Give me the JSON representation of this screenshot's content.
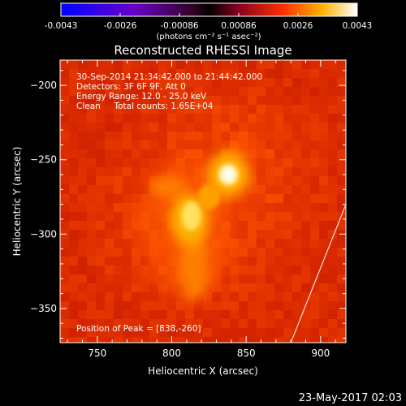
{
  "colorbar": {
    "ticks": [
      "-0.0043",
      "-0.0026",
      "-0.00086",
      "0.00086",
      "0.0026",
      "0.0043"
    ],
    "unit_label": "(photons cm⁻² s⁻¹ asec⁻²)"
  },
  "chart_data": {
    "type": "heatmap",
    "title": "Reconstructed RHESSI Image",
    "xlabel": "Heliocentric X (arcsec)",
    "ylabel": "Heliocentric Y (arcsec)",
    "xlim": [
      725,
      917
    ],
    "ylim": [
      -373,
      -183
    ],
    "xticks": [
      750,
      800,
      850,
      900
    ],
    "yticks": [
      -200,
      -250,
      -300,
      -350
    ],
    "xtick_labels": [
      "750",
      "800",
      "850",
      "900"
    ],
    "ytick_labels": [
      "−200",
      "−250",
      "−300",
      "−350"
    ],
    "colorscale_range": [
      -0.0043,
      0.0043
    ],
    "sources": [
      {
        "x": 838,
        "y": -260
      },
      {
        "x": 812,
        "y": -290
      }
    ],
    "limb_line": [
      [
        880,
        -373
      ],
      [
        917,
        -280
      ]
    ],
    "annotations": [
      "30-Sep-2014 21:34:42.000 to 21:44:42.000",
      "Detectors: 3F 6F 9F, Att 0",
      "Energy Range: 12.0 - 25.0 keV",
      "Clean     Total counts: 1.65E+04"
    ],
    "peak_label": "Position of Peak = [838,-260]"
  },
  "footer": {
    "timestamp": "23-May-2017 02:03"
  }
}
